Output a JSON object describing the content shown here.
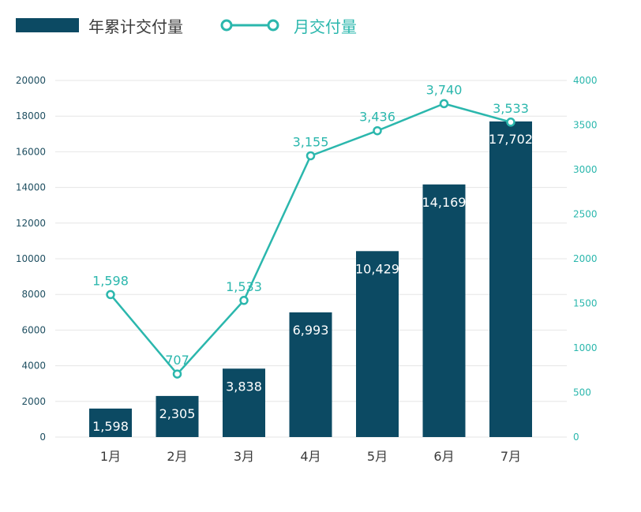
{
  "colors": {
    "bar": "#0c4a63",
    "line": "#2bb7ad",
    "grid": "#e6e6e6",
    "text": "#3a3a3a"
  },
  "chart_data": {
    "type": "bar",
    "categories": [
      "1月",
      "2月",
      "3月",
      "4月",
      "5月",
      "6月",
      "7月"
    ],
    "series": [
      {
        "name": "年累计交付量",
        "type": "bar",
        "axis": "left",
        "values": [
          1598,
          2305,
          3838,
          6993,
          10429,
          14169,
          17702
        ],
        "labels": [
          "1,598",
          "2,305",
          "3,838",
          "6,993",
          "10,429",
          "14,169",
          "17,702"
        ]
      },
      {
        "name": "月交付量",
        "type": "line",
        "axis": "right",
        "values": [
          1598,
          707,
          1533,
          3155,
          3436,
          3740,
          3533
        ],
        "labels": [
          "1,598",
          "707",
          "1,533",
          "3,155",
          "3,436",
          "3,740",
          "3,533"
        ]
      }
    ],
    "ylim_left": [
      0,
      20000
    ],
    "yticks_left": [
      "0",
      "2000",
      "4000",
      "6000",
      "8000",
      "10000",
      "12000",
      "14000",
      "16000",
      "18000",
      "20000"
    ],
    "ylim_right": [
      0,
      4000
    ],
    "yticks_right": [
      "0",
      "500",
      "1000",
      "1500",
      "2000",
      "2500",
      "3000",
      "3500",
      "4000"
    ],
    "grid": true,
    "legend": "top-left"
  }
}
